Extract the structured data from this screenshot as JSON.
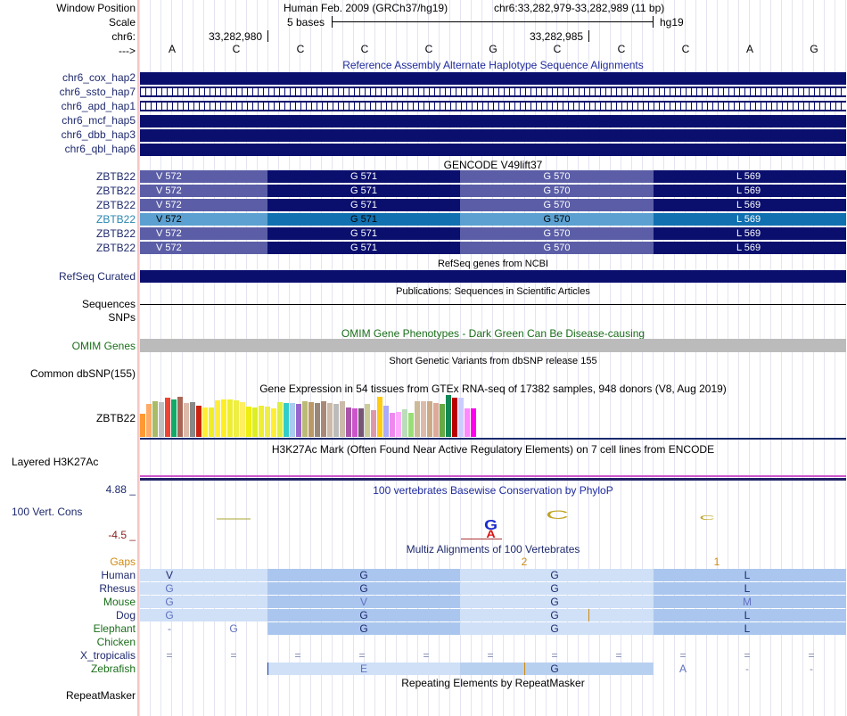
{
  "header": {
    "window_label": "Window Position",
    "window_value": "Human Feb. 2009 (GRCh37/hg19)",
    "window_coords": "chr6:33,282,979-33,282,989 (11 bp)",
    "scale_label": "Scale",
    "scale_value": "5 bases",
    "scale_db": "hg19",
    "chrom_label": "chr6:",
    "pos1": "33,282,980",
    "pos2": "33,282,985",
    "strand_label": "--->"
  },
  "bases": [
    "A",
    "C",
    "C",
    "C",
    "C",
    "G",
    "C",
    "C",
    "C",
    "A",
    "G"
  ],
  "haplotypes": {
    "title": "Reference Assembly Alternate Haplotype Sequence Alignments",
    "rows": [
      "chr6_cox_hap2",
      "chr6_ssto_hap7",
      "chr6_apd_hap1",
      "chr6_mcf_hap5",
      "chr6_dbb_hap3",
      "chr6_qbl_hap6"
    ]
  },
  "gencode": {
    "title": "GENCODE V49lift37",
    "gene": "ZBTB22",
    "aa": [
      "V 572",
      "G 571",
      "G 570",
      "L 569"
    ],
    "rows": 6
  },
  "refseq": {
    "title": "RefSeq genes from NCBI",
    "label": "RefSeq Curated"
  },
  "pubs": {
    "title": "Publications: Sequences in Scientific Articles",
    "seq_label": "Sequences",
    "snp_label": "SNPs"
  },
  "omim": {
    "title": "OMIM Gene Phenotypes - Dark Green Can Be Disease-causing",
    "label": "OMIM Genes"
  },
  "dbsnp": {
    "title": "Short Genetic Variants from dbSNP release 155",
    "label": "Common dbSNP(155)"
  },
  "gtex": {
    "title": "Gene Expression in 54 tissues from GTEx RNA-seq of 17382 samples, 948 donors (V8, Aug 2019)",
    "label": "ZBTB22",
    "values": [
      0.55,
      0.78,
      0.85,
      0.83,
      0.93,
      0.9,
      0.95,
      0.8,
      0.82,
      0.75,
      0.7,
      0.7,
      0.88,
      0.9,
      0.9,
      0.88,
      0.83,
      0.72,
      0.7,
      0.75,
      0.73,
      0.68,
      0.82,
      0.8,
      0.8,
      0.78,
      0.85,
      0.82,
      0.8,
      0.85,
      0.8,
      0.78,
      0.85,
      0.7,
      0.68,
      0.68,
      0.78,
      0.63,
      0.95,
      0.75,
      0.57,
      0.6,
      0.67,
      0.57,
      0.85,
      0.85,
      0.85,
      0.8,
      0.78,
      1.0,
      0.93,
      0.93,
      0.68,
      0.68
    ],
    "colors": [
      "#ff9933",
      "#ffaa66",
      "#aabb66",
      "#c0c0c0",
      "#ee4433",
      "#11aa66",
      "#aa6655",
      "#ddbbaa",
      "#888888",
      "#cc2211",
      "#ffee33",
      "#eeee22",
      "#ffee33",
      "#ffee22",
      "#eeee33",
      "#eeee44",
      "#ffee66",
      "#eeee11",
      "#ddee22",
      "#eeee33",
      "#eeee44",
      "#ffee33",
      "#ddee44",
      "#33cccc",
      "#aaccee",
      "#9966cc",
      "#bbbb77",
      "#bb9966",
      "#998877",
      "#aa8877",
      "#ccbbaa",
      "#bbbbbb",
      "#ccbbaa",
      "#aa55aa",
      "#cc55cc",
      "#775577",
      "#cccc99",
      "#dd99aa",
      "#ffcc11",
      "#aaaaff",
      "#ee88ee",
      "#ffaaff",
      "#bbddbb",
      "#99dd77",
      "#ccbb99",
      "#ddbbaa",
      "#ccaa88",
      "#ddaa99",
      "#66aa44",
      "#118855",
      "#bb0000",
      "#ccccff",
      "#ff88ff",
      "#ff00ee"
    ]
  },
  "h3k27ac": {
    "title": "H3K27Ac Mark (Often Found Near Active Regulatory Elements) on 7 cell lines from ENCODE",
    "label": "Layered H3K27Ac"
  },
  "phylop": {
    "title": "100 vertebrates Basewise Conservation by PhyloP",
    "label": "100 Vert. Cons",
    "max": "4.88 _",
    "min": "-4.5 _",
    "logo_letters": [
      "C",
      "C",
      "C",
      "C",
      "A"
    ],
    "logo_neg": [
      "G",
      "A"
    ]
  },
  "multiz": {
    "title": "Multiz Alignments of 100 Vertebrates",
    "gaps_label": "Gaps",
    "gap_counts": [
      "2",
      "1"
    ],
    "species": [
      {
        "name": "Human",
        "aa": [
          "V",
          "G",
          "G",
          "L"
        ]
      },
      {
        "name": "Rhesus",
        "aa": [
          "G",
          "G",
          "G",
          "L"
        ]
      },
      {
        "name": "Mouse",
        "aa": [
          "G",
          "V",
          "G",
          "M"
        ]
      },
      {
        "name": "Dog",
        "aa": [
          "G",
          "G",
          "G",
          "L"
        ]
      },
      {
        "name": "Elephant",
        "aa": [
          "-",
          "G",
          "G",
          "G",
          "L"
        ]
      },
      {
        "name": "Chicken",
        "aa": []
      },
      {
        "name": "X_tropicalis",
        "aa": [
          "=",
          "=",
          "=",
          "=",
          "=",
          "=",
          "=",
          "=",
          "=",
          "=",
          "="
        ]
      },
      {
        "name": "Zebrafish",
        "aa": [
          "E",
          "G",
          "A",
          "-",
          "-"
        ]
      }
    ]
  },
  "repeatmasker": {
    "title": "Repeating Elements by RepeatMasker",
    "label": "RepeatMasker"
  }
}
